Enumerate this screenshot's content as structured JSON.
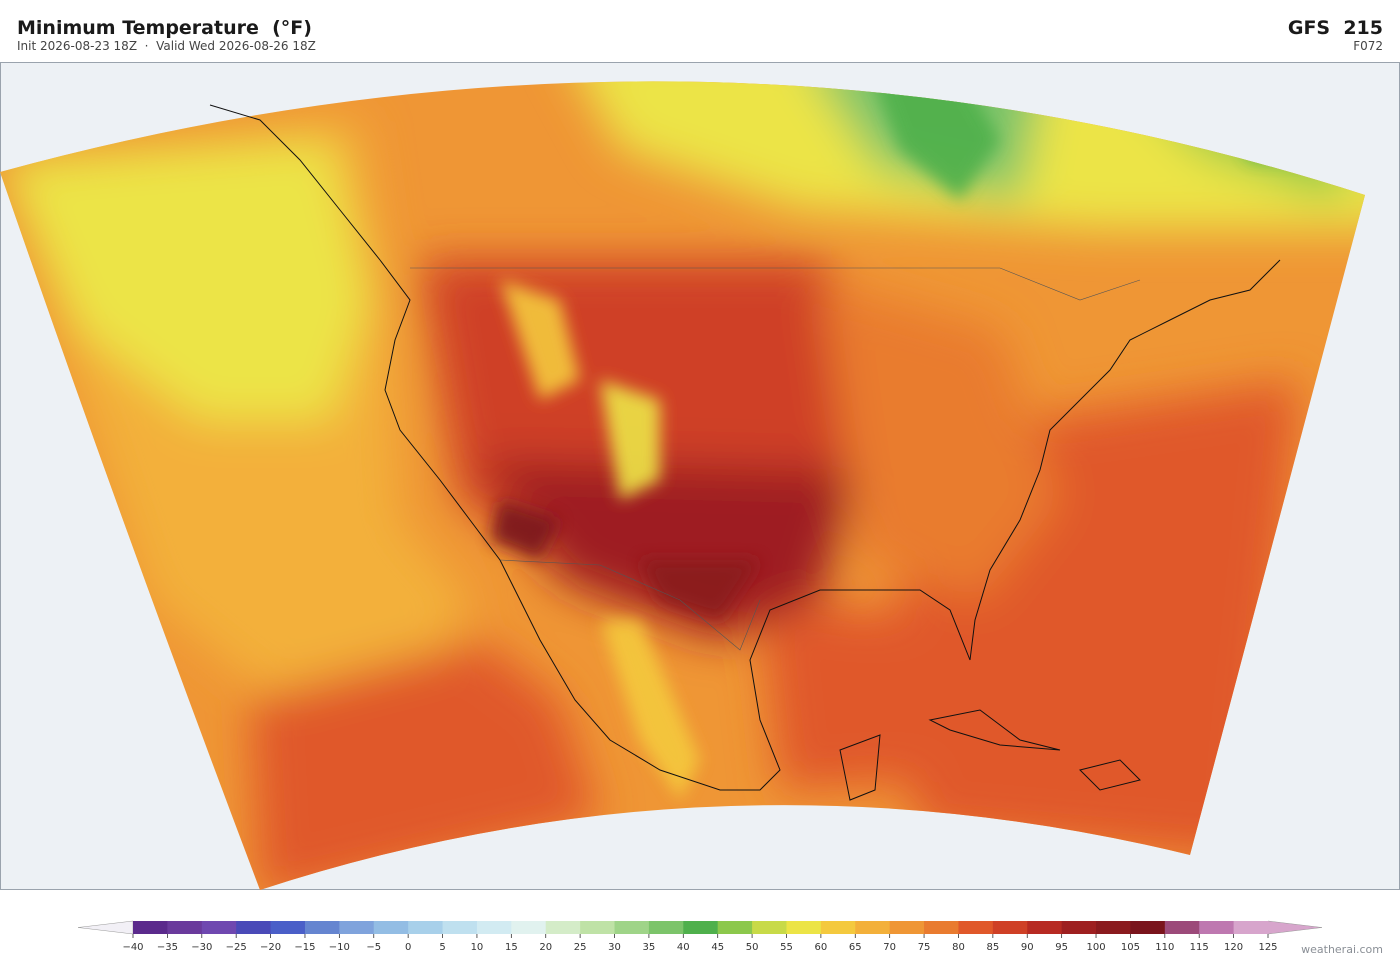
{
  "header": {
    "title": "Minimum Temperature  (°F)",
    "subtitle": "Init 2026-08-23 18Z  ·  Valid Wed 2026-08-26 18Z",
    "model": "GFS  215",
    "forecast_hour": "F072"
  },
  "colorbar": {
    "ticks": [
      {
        "value": -40,
        "label": "−40"
      },
      {
        "value": -35,
        "label": "−35"
      },
      {
        "value": -30,
        "label": "−30"
      },
      {
        "value": -25,
        "label": "−25"
      },
      {
        "value": -20,
        "label": "−20"
      },
      {
        "value": -15,
        "label": "−15"
      },
      {
        "value": -10,
        "label": "−10"
      },
      {
        "value": -5,
        "label": "−5"
      },
      0,
      5,
      10,
      15,
      20,
      25,
      30,
      35,
      40,
      45,
      50,
      55,
      60,
      65,
      70,
      75,
      80,
      85,
      90,
      95,
      100,
      105,
      110,
      115,
      120,
      125
    ],
    "colors": [
      "#5b2a8c",
      "#6a3a9c",
      "#6f48b0",
      "#4a4ab8",
      "#4a5fc8",
      "#6585d0",
      "#7fa3dc",
      "#93bde4",
      "#a8d0ea",
      "#bfe0ef",
      "#d2ebf2",
      "#e1f2ef",
      "#d4ecc8",
      "#bfe2a6",
      "#9fd488",
      "#7cc46a",
      "#4fb04c",
      "#8cc84c",
      "#c8da48",
      "#ece446",
      "#f4c93e",
      "#f3b03a",
      "#ef9635",
      "#e97b2f",
      "#e0582a",
      "#cf4026",
      "#b72a22",
      "#9e1f20",
      "#8a1a1e",
      "#7a141c",
      "#9c4a7a",
      "#be78b0",
      "#d7a5cc"
    ],
    "under_color": "#f2f0f6",
    "over_color": "#d7a5cc"
  },
  "footer": {
    "credit": "weatherai.com"
  }
}
